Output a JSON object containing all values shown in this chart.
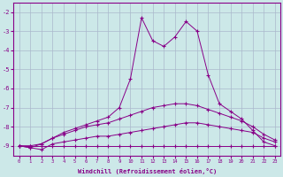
{
  "xlabel": "Windchill (Refroidissement éolien,°C)",
  "background_color": "#cce8e8",
  "grid_color": "#aab8cc",
  "line_color": "#880088",
  "x_hours": [
    0,
    1,
    2,
    3,
    4,
    5,
    6,
    7,
    8,
    9,
    10,
    11,
    12,
    13,
    14,
    15,
    16,
    17,
    18,
    19,
    20,
    21,
    22,
    23
  ],
  "series1": [
    -9.0,
    -9.0,
    -9.0,
    -9.0,
    -9.0,
    -9.0,
    -9.0,
    -9.0,
    -9.0,
    -9.0,
    -9.0,
    -9.0,
    -9.0,
    -9.0,
    -9.0,
    -9.0,
    -9.0,
    -9.0,
    -9.0,
    -9.0,
    -9.0,
    -9.0,
    -9.0,
    -9.0
  ],
  "series2": [
    -9.0,
    -9.1,
    -9.2,
    -8.9,
    -8.8,
    -8.7,
    -8.6,
    -8.5,
    -8.5,
    -8.4,
    -8.3,
    -8.2,
    -8.1,
    -8.0,
    -7.9,
    -7.8,
    -7.8,
    -7.9,
    -8.0,
    -8.1,
    -8.2,
    -8.3,
    -8.6,
    -8.8
  ],
  "series3": [
    -9.0,
    -9.0,
    -8.9,
    -8.6,
    -8.4,
    -8.2,
    -8.0,
    -7.9,
    -7.8,
    -7.6,
    -7.4,
    -7.2,
    -7.0,
    -6.9,
    -6.8,
    -6.8,
    -6.9,
    -7.1,
    -7.3,
    -7.5,
    -7.7,
    -8.0,
    -8.4,
    -8.7
  ],
  "series4": [
    -9.0,
    -9.1,
    -8.9,
    -8.6,
    -8.3,
    -8.1,
    -7.9,
    -7.7,
    -7.5,
    -7.0,
    -5.5,
    -2.3,
    -3.5,
    -3.8,
    -3.3,
    -2.5,
    -3.0,
    -5.3,
    -6.8,
    -7.2,
    -7.6,
    -8.2,
    -8.8,
    -9.0
  ],
  "ylim": [
    -9.5,
    -1.5
  ],
  "yticks": [
    -9,
    -8,
    -7,
    -6,
    -5,
    -4,
    -3,
    -2
  ]
}
